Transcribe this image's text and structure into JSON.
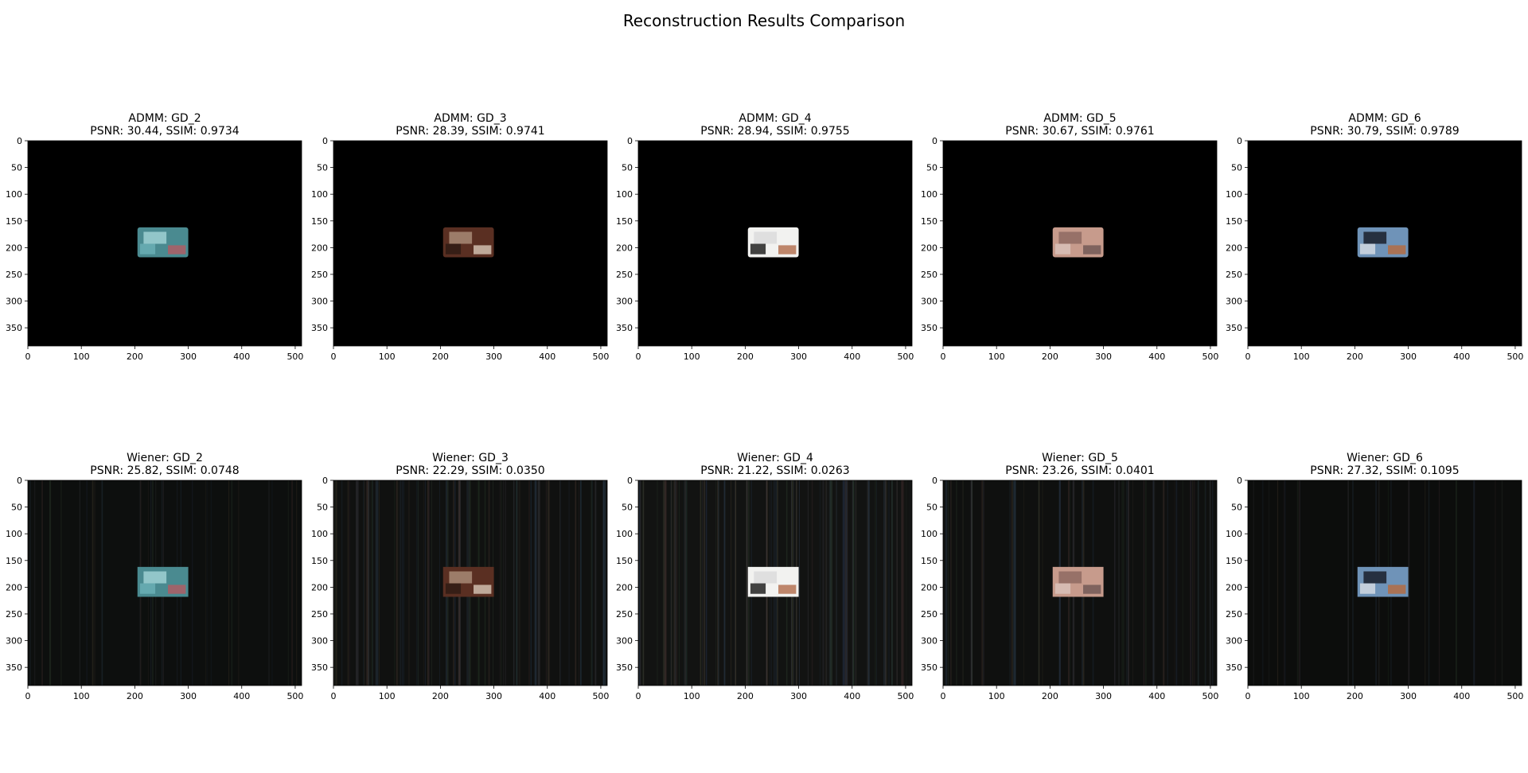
{
  "figure": {
    "title": "Reconstruction Results Comparison"
  },
  "chart_data": {
    "type": "image-grid",
    "title": "Reconstruction Results Comparison",
    "image_extent": {
      "x": [
        0,
        512
      ],
      "y": [
        384,
        0
      ]
    },
    "xticks": [
      0,
      100,
      200,
      300,
      400,
      500
    ],
    "yticks": [
      0,
      50,
      100,
      150,
      200,
      250,
      300,
      350
    ],
    "grid": false,
    "patch_region": {
      "x": [
        205,
        300
      ],
      "y": [
        162,
        218
      ]
    },
    "panels": [
      {
        "method": "ADMM",
        "name": "ADMM: GD_2",
        "metrics": "PSNR: 30.44, SSIM: 0.9734",
        "psnr": 30.44,
        "ssim": 0.9734,
        "background": "#000000",
        "noise": 0,
        "patch": [
          "#4a8a90",
          "#9fd0d4",
          "#6bb0b7",
          "#b35a62"
        ]
      },
      {
        "method": "ADMM",
        "name": "ADMM: GD_3",
        "metrics": "PSNR: 28.39, SSIM: 0.9741",
        "psnr": 28.39,
        "ssim": 0.9741,
        "background": "#000000",
        "noise": 0,
        "patch": [
          "#5a2f22",
          "#a88a76",
          "#2d1a14",
          "#d8c8b8"
        ]
      },
      {
        "method": "ADMM",
        "name": "ADMM: GD_4",
        "metrics": "PSNR: 28.94, SSIM: 0.9755",
        "psnr": 28.94,
        "ssim": 0.9755,
        "background": "#000000",
        "noise": 0,
        "patch": [
          "#f2f2f0",
          "#dcdcdc",
          "#151515",
          "#b06a4a"
        ]
      },
      {
        "method": "ADMM",
        "name": "ADMM: GD_5",
        "metrics": "PSNR: 30.67, SSIM: 0.9761",
        "psnr": 30.67,
        "ssim": 0.9761,
        "background": "#000000",
        "noise": 0,
        "patch": [
          "#c79b8c",
          "#8e6a62",
          "#d9c3bb",
          "#6d5552"
        ]
      },
      {
        "method": "ADMM",
        "name": "ADMM: GD_6",
        "metrics": "PSNR: 30.79, SSIM: 0.9789",
        "psnr": 30.79,
        "ssim": 0.9789,
        "background": "#000000",
        "noise": 0,
        "patch": [
          "#6f93b8",
          "#1a1f2a",
          "#d8dde4",
          "#b86a3c"
        ]
      },
      {
        "method": "Wiener",
        "name": "Wiener: GD_2",
        "metrics": "PSNR: 25.82, SSIM: 0.0748",
        "psnr": 25.82,
        "ssim": 0.0748,
        "background": "#0d0f0e",
        "noise": 0.25,
        "patch": [
          "#4a8a90",
          "#9fd0d4",
          "#6bb0b7",
          "#b35a62"
        ]
      },
      {
        "method": "Wiener",
        "name": "Wiener: GD_3",
        "metrics": "PSNR: 22.29, SSIM: 0.0350",
        "psnr": 22.29,
        "ssim": 0.035,
        "background": "#101110",
        "noise": 0.7,
        "patch": [
          "#5a2f22",
          "#a88a76",
          "#2d1a14",
          "#d8c8b8"
        ]
      },
      {
        "method": "Wiener",
        "name": "Wiener: GD_4",
        "metrics": "PSNR: 21.22, SSIM: 0.0263",
        "psnr": 21.22,
        "ssim": 0.0263,
        "background": "#121312",
        "noise": 0.8,
        "patch": [
          "#f2f2f0",
          "#dcdcdc",
          "#151515",
          "#b06a4a"
        ]
      },
      {
        "method": "Wiener",
        "name": "Wiener: GD_5",
        "metrics": "PSNR: 23.26, SSIM: 0.0401",
        "psnr": 23.26,
        "ssim": 0.0401,
        "background": "#0f100f",
        "noise": 0.5,
        "patch": [
          "#c79b8c",
          "#8e6a62",
          "#d9c3bb",
          "#6d5552"
        ]
      },
      {
        "method": "Wiener",
        "name": "Wiener: GD_6",
        "metrics": "PSNR: 27.32, SSIM: 0.1095",
        "psnr": 27.32,
        "ssim": 0.1095,
        "background": "#0c0d0c",
        "noise": 0.2,
        "patch": [
          "#6f93b8",
          "#1a1f2a",
          "#d8dde4",
          "#b86a3c"
        ]
      }
    ]
  }
}
